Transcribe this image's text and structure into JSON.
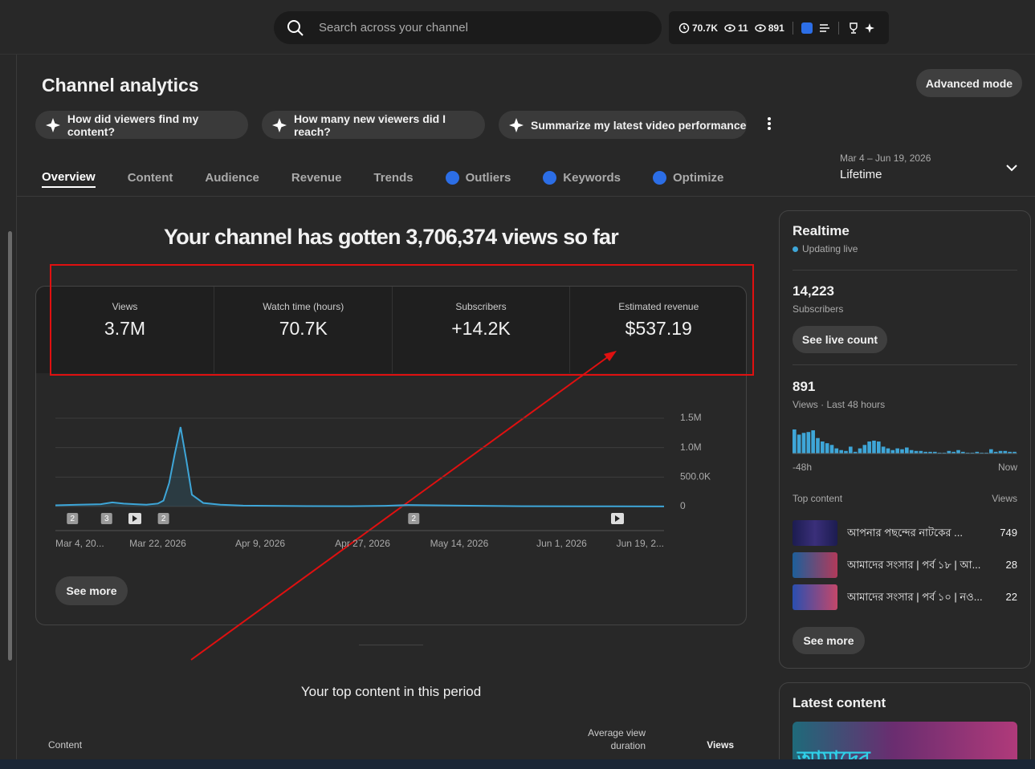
{
  "topbar": {
    "search_placeholder": "Search across your channel",
    "stats": [
      "70.7K",
      "11",
      "891"
    ]
  },
  "header": {
    "title": "Channel analytics",
    "advanced_mode": "Advanced mode"
  },
  "prompts": [
    "How did viewers find my content?",
    "How many new viewers did I reach?",
    "Summarize my latest video performance"
  ],
  "tabs": [
    {
      "label": "Overview",
      "iq": false
    },
    {
      "label": "Content",
      "iq": false
    },
    {
      "label": "Audience",
      "iq": false
    },
    {
      "label": "Revenue",
      "iq": false
    },
    {
      "label": "Trends",
      "iq": false
    },
    {
      "label": "Outliers",
      "iq": true
    },
    {
      "label": "Keywords",
      "iq": true
    },
    {
      "label": "Optimize",
      "iq": true
    }
  ],
  "date_range": {
    "range": "Mar 4 – Jun 19, 2026",
    "label": "Lifetime"
  },
  "headline": "Your channel has gotten 3,706,374 views so far",
  "metrics": [
    {
      "label": "Views",
      "value": "3.7M"
    },
    {
      "label": "Watch time (hours)",
      "value": "70.7K"
    },
    {
      "label": "Subscribers",
      "value": "+14.2K"
    },
    {
      "label": "Estimated revenue",
      "value": "$537.19"
    }
  ],
  "chart_data": {
    "type": "line",
    "color": "#3ea6d8",
    "x": [
      "2026-03-04",
      "2026-03-08",
      "2026-03-12",
      "2026-03-14",
      "2026-03-16",
      "2026-03-18",
      "2026-03-20",
      "2026-03-22",
      "2026-03-23",
      "2026-03-24",
      "2026-03-25",
      "2026-03-26",
      "2026-03-27",
      "2026-03-28",
      "2026-03-30",
      "2026-04-02",
      "2026-04-06",
      "2026-04-15",
      "2026-04-25",
      "2026-05-01",
      "2026-05-05",
      "2026-05-14",
      "2026-05-25",
      "2026-06-05",
      "2026-06-19"
    ],
    "values": [
      20000,
      30000,
      40000,
      70000,
      50000,
      40000,
      30000,
      50000,
      100000,
      400000,
      900000,
      1350000,
      800000,
      200000,
      60000,
      30000,
      15000,
      8000,
      5000,
      12000,
      25000,
      15000,
      5000,
      3000,
      2000
    ],
    "xlim": [
      "2026-03-04",
      "2026-06-19"
    ],
    "xticks": [
      {
        "value": "2026-03-04",
        "label": "Mar 4, 20..."
      },
      {
        "value": "2026-03-22",
        "label": "Mar 22, 2026"
      },
      {
        "value": "2026-04-09",
        "label": "Apr 9, 2026"
      },
      {
        "value": "2026-04-27",
        "label": "Apr 27, 2026"
      },
      {
        "value": "2026-05-14",
        "label": "May 14, 2026"
      },
      {
        "value": "2026-06-01",
        "label": "Jun 1, 2026"
      },
      {
        "value": "2026-06-19",
        "label": "Jun 19, 2..."
      }
    ],
    "ylim": [
      0,
      1500000
    ],
    "yticks": [
      0,
      {
        "value": 500000,
        "label": "500.0K"
      },
      {
        "value": 1000000,
        "label": "1.0M"
      },
      {
        "value": 1500000,
        "label": "1.5M"
      }
    ],
    "grid": true,
    "annotations": [
      {
        "x": "2026-03-07",
        "label": "2"
      },
      {
        "x": "2026-03-13",
        "label": "3"
      },
      {
        "x": "2026-03-23",
        "label": "2"
      },
      {
        "x": "2026-05-06",
        "label": "2"
      }
    ]
  },
  "see_more": "See more",
  "top_content": {
    "title": "Your top content in this period",
    "columns": [
      "Content",
      "Average view duration",
      "Views"
    ]
  },
  "realtime": {
    "title": "Realtime",
    "status": "Updating live",
    "subscribers": {
      "value": "14,223",
      "label": "Subscribers"
    },
    "see_live_count": "See live count",
    "views": {
      "value": "891",
      "label": "Views · Last 48 hours"
    },
    "bars": {
      "color": "#3ea6d8",
      "values": [
        28,
        22,
        24,
        25,
        27,
        18,
        14,
        12,
        10,
        6,
        4,
        3,
        8,
        2,
        6,
        10,
        14,
        15,
        14,
        8,
        6,
        4,
        6,
        5,
        7,
        4,
        3,
        3,
        2,
        2,
        2,
        1,
        1,
        3,
        2,
        4,
        2,
        1,
        1,
        2,
        1,
        1,
        5,
        2,
        3,
        3,
        2,
        2
      ]
    },
    "axis": [
      "-48h",
      "Now"
    ],
    "top_content": {
      "header": "Top content",
      "views_header": "Views",
      "items": [
        {
          "title": "আপনার পছন্দের নাটকের ...",
          "views": "749"
        },
        {
          "title": "আমাদের সংসার | পর্ব ১৮ | আ...",
          "views": "28"
        },
        {
          "title": "আমাদের সংসার | পর্ব ১০ | নও...",
          "views": "22"
        }
      ]
    },
    "see_more": "See more"
  },
  "latest_content": {
    "title": "Latest content",
    "thumbnail_text": "আমাদের"
  }
}
